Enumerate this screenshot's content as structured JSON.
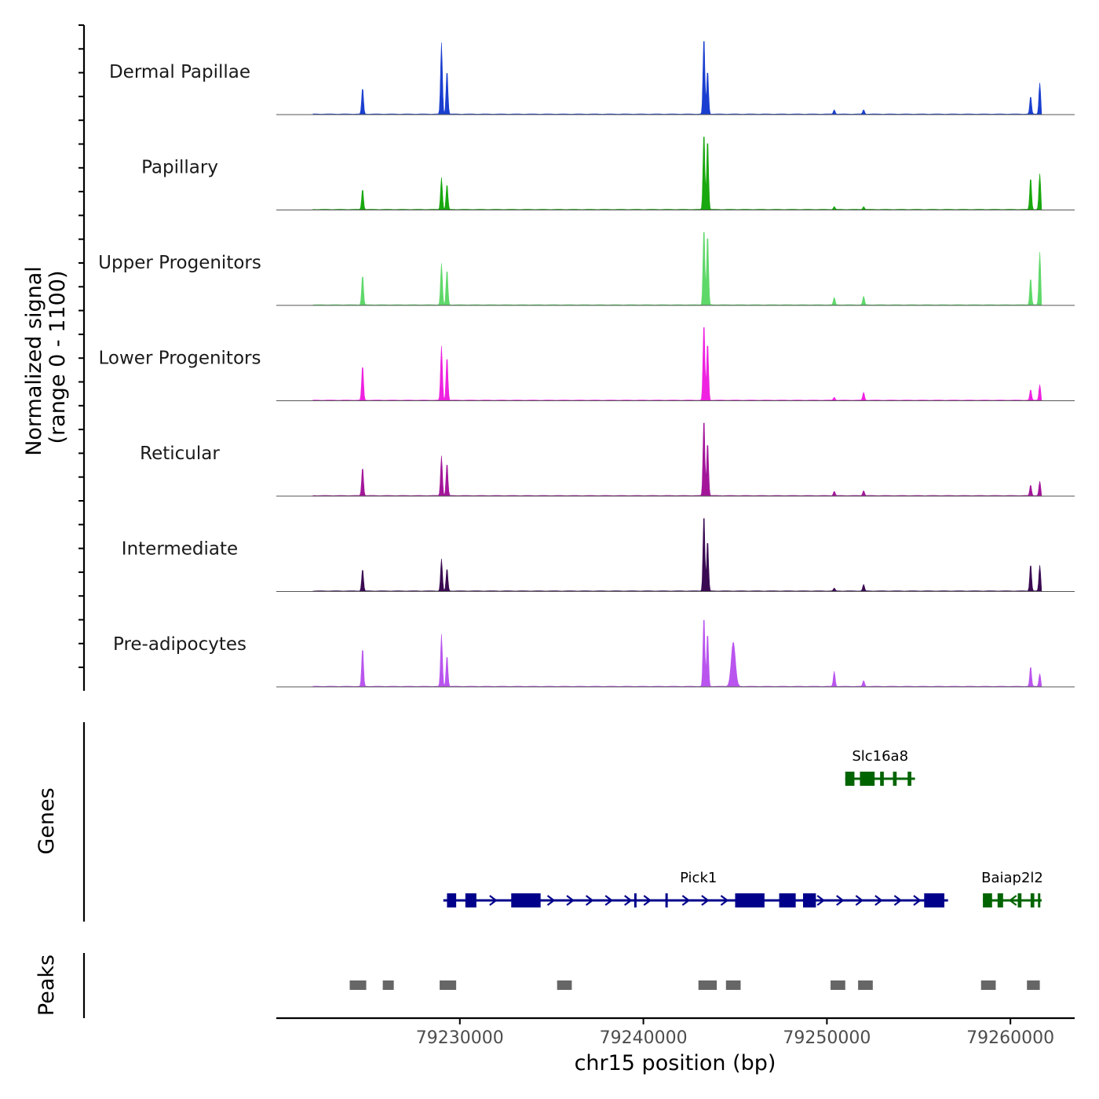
{
  "chart_data": {
    "type": "area",
    "title": "",
    "chromosome": "chr15",
    "xlabel": "chr15 position (bp)",
    "xlim": [
      79220000,
      79263500
    ],
    "xticks": [
      79230000,
      79240000,
      79250000,
      79260000
    ],
    "xtick_labels": [
      "79230000",
      "79240000",
      "79250000",
      "79260000"
    ],
    "signal_panel": {
      "ylabel_line1": "Normalized signal",
      "ylabel_line2": "(range 0 - 1100)",
      "ylim": [
        0,
        1100
      ],
      "peak_positions": [
        79224700,
        79229000,
        79229300,
        79243300,
        79243500,
        79244900,
        79250400,
        79252000,
        79261100,
        79261600
      ],
      "series": [
        {
          "name": "Dermal Papillae",
          "color": "#1a3fd0",
          "values": [
            370,
            1000,
            620,
            1100,
            620,
            0,
            60,
            60,
            250,
            440
          ]
        },
        {
          "name": "Papillary",
          "color": "#19a80f",
          "values": [
            290,
            450,
            360,
            1100,
            1000,
            0,
            40,
            40,
            450,
            500
          ]
        },
        {
          "name": "Upper Progenitors",
          "color": "#5fd86a",
          "values": [
            420,
            580,
            500,
            1100,
            1000,
            0,
            100,
            120,
            380,
            740
          ]
        },
        {
          "name": "Lower Progenitors",
          "color": "#ee22e0",
          "values": [
            490,
            760,
            620,
            1100,
            820,
            0,
            40,
            110,
            150,
            220
          ]
        },
        {
          "name": "Reticular",
          "color": "#a3169a",
          "values": [
            400,
            560,
            460,
            1100,
            760,
            0,
            60,
            70,
            150,
            200
          ]
        },
        {
          "name": "Intermediate",
          "color": "#3a0a52",
          "values": [
            310,
            450,
            320,
            1100,
            720,
            0,
            40,
            90,
            380,
            360
          ]
        },
        {
          "name": "Pre-adipocytes",
          "color": "#b955ee",
          "values": [
            540,
            730,
            440,
            1000,
            760,
            620,
            210,
            80,
            280,
            180
          ]
        }
      ]
    },
    "genes_panel": {
      "ylabel": "Genes",
      "genes": [
        {
          "name": "Slc16a8",
          "start": 79251000,
          "end": 79254800,
          "strand": "-",
          "color": "#006400",
          "row": 1,
          "exons": [
            [
              79251000,
              79251500
            ],
            [
              79251800,
              79252600
            ],
            [
              79252900,
              79253100
            ],
            [
              79253600,
              79253800
            ],
            [
              79254400,
              79254600
            ]
          ]
        },
        {
          "name": "Pick1",
          "start": 79229100,
          "end": 79256600,
          "strand": "+",
          "color": "#00008b",
          "row": 2,
          "exons": [
            [
              79229300,
              79229800
            ],
            [
              79230300,
              79230900
            ],
            [
              79232800,
              79234400
            ],
            [
              79239500,
              79239600
            ],
            [
              79241200,
              79241300
            ],
            [
              79245000,
              79246600
            ],
            [
              79247400,
              79248300
            ],
            [
              79248700,
              79249400
            ],
            [
              79255300,
              79256400
            ]
          ]
        },
        {
          "name": "Baiap2l2",
          "start": 79258500,
          "end": 79261700,
          "strand": "-",
          "color": "#006400",
          "row": 2,
          "exons": [
            [
              79258500,
              79259000
            ],
            [
              79259300,
              79259600
            ],
            [
              79260400,
              79260600
            ],
            [
              79261100,
              79261300
            ],
            [
              79261500,
              79261600
            ]
          ]
        }
      ]
    },
    "peaks_panel": {
      "ylabel": "Peaks",
      "peaks": [
        [
          79224000,
          79224900
        ],
        [
          79225800,
          79226400
        ],
        [
          79228900,
          79229800
        ],
        [
          79235300,
          79236100
        ],
        [
          79243000,
          79244000
        ],
        [
          79244500,
          79245300
        ],
        [
          79250200,
          79251000
        ],
        [
          79251700,
          79252500
        ],
        [
          79258400,
          79259200
        ],
        [
          79260900,
          79261600
        ]
      ]
    }
  }
}
